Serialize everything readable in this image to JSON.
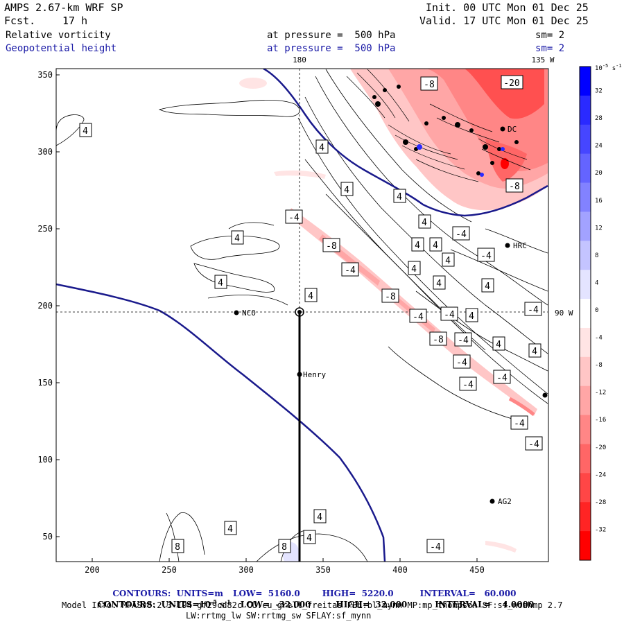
{
  "header": {
    "model": "AMPS 2.67-km WRF SP",
    "init": "Init. 00 UTC Mon 01 Dec 25",
    "fcst_label": "Fcst.",
    "fcst_value": "17 h",
    "valid": "Valid. 17 UTC Mon 01 Dec 25",
    "field1": "Relative vorticity",
    "field1_level": "at pressure =  500 hPa",
    "field1_sm": "sm= 2",
    "field2": "Geopotential height",
    "field2_level": "at pressure =  500 hPa",
    "field2_sm": "sm= 2"
  },
  "map": {
    "lon_labels": [
      "180",
      "135 W",
      "90 W"
    ],
    "stations": [
      "NCO",
      "Henry",
      "HRC",
      "AG2",
      "DC"
    ],
    "contour_labels": [
      "4",
      "4",
      "4",
      "4",
      "4",
      "4",
      "4",
      "4",
      "4",
      "4",
      "4",
      "4",
      "4",
      "4",
      "4",
      "4",
      "4",
      "4",
      "4",
      "4",
      "8",
      "-4",
      "-4",
      "-4",
      "-4",
      "-4",
      "-4",
      "-4",
      "-4",
      "-4",
      "-4",
      "-4",
      "-4",
      "-4",
      "-4",
      "-4",
      "-8",
      "-8",
      "-8",
      "-8",
      "-8",
      "-20"
    ]
  },
  "axes": {
    "x_ticks": [
      "200",
      "250",
      "300",
      "350",
      "400",
      "450"
    ],
    "y_ticks": [
      "350",
      "300",
      "250",
      "200",
      "150",
      "100",
      "50"
    ]
  },
  "colorbar": {
    "unit_base": "10",
    "unit_exp": "-5",
    "unit_tail": " s",
    "unit_tail_exp": "-1",
    "labels": [
      "32",
      "28",
      "24",
      "20",
      "16",
      "12",
      "8",
      "4",
      "0",
      "-4",
      "-8",
      "-12",
      "-16",
      "-20",
      "-24",
      "-28",
      "-32"
    ],
    "colors": [
      "#0000ff",
      "#2a2aff",
      "#4646ff",
      "#6464ff",
      "#8282ff",
      "#a2a2ff",
      "#c4c4ff",
      "#e4e4ff",
      "#ffffff",
      "#ffe4e4",
      "#ffc6c6",
      "#ffa6a6",
      "#ff8686",
      "#ff6666",
      "#ff4646",
      "#ff2424",
      "#ff0000"
    ]
  },
  "footer": {
    "c1_prefix": "CONTOURS:  UNITS=m",
    "c1_low": "LOW=  5160.0",
    "c1_high": "HIGH=  5220.0",
    "c1_int": "INTERVAL=   60.000",
    "c2_prefix": "CONTOURS:  UNITS=10",
    "c2_exp": "-5",
    "c2_s": " s",
    "c2_sexp": "-1",
    "c2_low": "LOW=  -32.000",
    "c2_high": "HIGH=  32.000",
    "c2_int": "INTERVAL=    4.0000",
    "model_info": "Model Info: MPASv8.2.3-194-gf29cd82c CU:cu_grell_freitas PBL:bl_mynn MP:mp_thompson SF:sf_noahmp 2.7",
    "model_info2": "LW:rrtmg_lw SW:rrtmg_sw SFLAY:sf_mynn"
  }
}
